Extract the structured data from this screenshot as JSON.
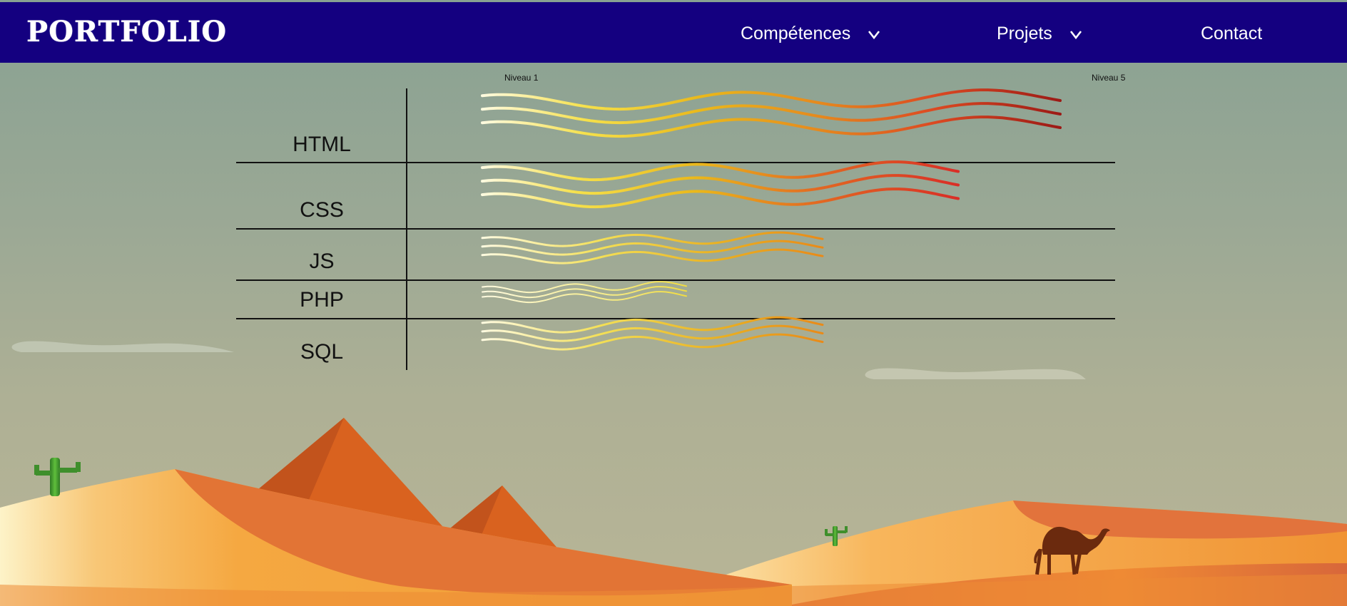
{
  "brand": {
    "title": "PORTFOLIO"
  },
  "nav": {
    "items": [
      {
        "label": "Compétences",
        "has_dropdown": true
      },
      {
        "label": "Projets",
        "has_dropdown": true
      },
      {
        "label": "Contact",
        "has_dropdown": false
      }
    ]
  },
  "skills": {
    "scale": {
      "min_label": "Niveau 1",
      "max_label": "Niveau 5"
    },
    "rows": [
      {
        "name": "HTML"
      },
      {
        "name": "CSS"
      },
      {
        "name": "JS"
      },
      {
        "name": "PHP"
      },
      {
        "name": "SQL"
      }
    ]
  },
  "colors": {
    "navbar": "#140080",
    "wave_start": "#fffbe0",
    "wave_mid": "#f2d321",
    "wave_orange": "#e8a016",
    "wave_end": "#a01a16"
  },
  "decor": {
    "icons": [
      "cactus-icon",
      "camel-icon",
      "pyramid-icon",
      "cloud-icon",
      "dune-icon"
    ]
  }
}
